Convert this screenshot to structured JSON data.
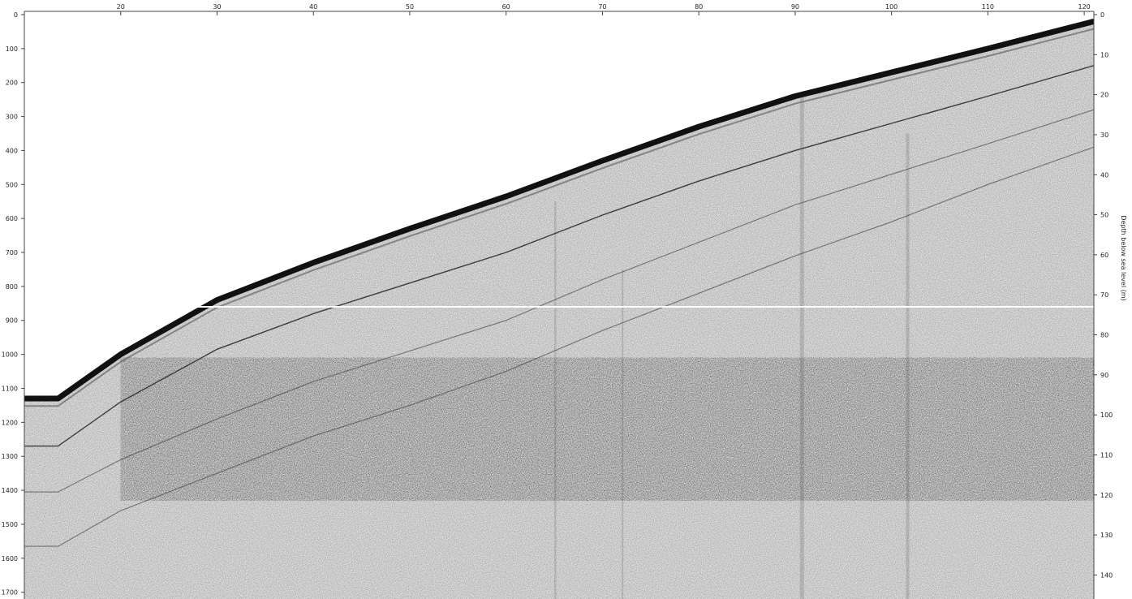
{
  "chart_data": {
    "type": "heatmap",
    "title": "",
    "subtitle": "",
    "xlabel": "",
    "ylabel_left": "",
    "ylabel_right": "Depth below sea level (m)",
    "x_ticks": [
      20,
      30,
      40,
      50,
      60,
      70,
      80,
      90,
      100,
      110,
      120
    ],
    "x_range": [
      10,
      121
    ],
    "y_left_ticks": [
      0,
      100,
      200,
      300,
      400,
      500,
      600,
      700,
      800,
      900,
      1000,
      1100,
      1200,
      1300,
      1400,
      1500,
      1600,
      1700
    ],
    "y_left_range": [
      0,
      1720
    ],
    "y_right_ticks": [
      0,
      10,
      20,
      30,
      40,
      50,
      60,
      70,
      80,
      90,
      100,
      110,
      120,
      130,
      140
    ],
    "y_right_range": [
      0,
      146
    ],
    "grid": false,
    "legend": "none",
    "colors": {
      "background": "#e6e6e6",
      "seafloor_reflector": "#111111",
      "water_column": "#ffffff",
      "reflector_lines": "#333333",
      "axis": "#444444"
    },
    "seafloor": {
      "x": [
        10,
        13.5,
        20,
        30,
        40,
        50,
        60,
        70,
        80,
        90,
        100,
        110,
        121
      ],
      "y": [
        1130,
        1130,
        1000,
        840,
        730,
        630,
        535,
        430,
        330,
        240,
        170,
        100,
        20
      ]
    },
    "reflectors": [
      {
        "x": [
          10,
          13.5,
          20,
          30,
          40,
          50,
          60,
          70,
          80,
          90,
          100,
          110,
          121
        ],
        "y": [
          1270,
          1270,
          1140,
          985,
          880,
          790,
          700,
          590,
          490,
          400,
          320,
          240,
          150
        ]
      },
      {
        "x": [
          10,
          13.5,
          20,
          30,
          40,
          50,
          60,
          70,
          80,
          90,
          100,
          110,
          121
        ],
        "y": [
          1405,
          1405,
          1310,
          1190,
          1080,
          990,
          900,
          780,
          670,
          560,
          470,
          380,
          280
        ]
      },
      {
        "x": [
          10,
          13.5,
          20,
          30,
          40,
          50,
          60,
          70,
          80,
          90,
          100,
          110,
          121
        ],
        "y": [
          1565,
          1565,
          1460,
          1350,
          1240,
          1150,
          1050,
          930,
          820,
          710,
          610,
          500,
          390
        ]
      }
    ],
    "chaotic_unit_top": {
      "x": [
        20,
        30,
        40,
        50,
        55,
        58,
        62,
        65,
        68,
        72,
        76,
        80,
        84,
        88,
        92,
        96,
        100,
        104,
        108,
        112,
        116,
        121
      ],
      "y": [
        1150,
        1135,
        1130,
        1130,
        1100,
        1085,
        1110,
        1075,
        1100,
        1060,
        1050,
        1060,
        1040,
        1060,
        1080,
        1065,
        1070,
        1060,
        1065,
        1055,
        1040,
        1010
      ]
    },
    "section_break_depth_right": 73
  }
}
